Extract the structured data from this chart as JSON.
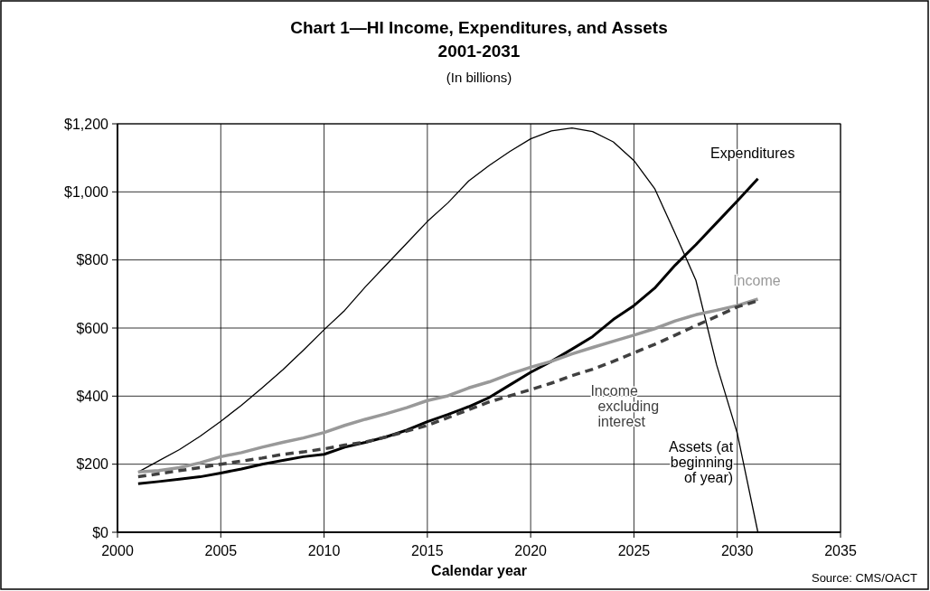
{
  "chart_data": {
    "type": "line",
    "title": "Chart 1—HI Income, Expenditures, and Assets\n2001-2031",
    "subtitle": "(In billions)",
    "xlabel": "Calendar year",
    "annotations": [
      "Source: CMS/OACT"
    ],
    "x": [
      2001,
      2002,
      2003,
      2004,
      2005,
      2006,
      2007,
      2008,
      2009,
      2010,
      2011,
      2012,
      2013,
      2014,
      2015,
      2016,
      2017,
      2018,
      2019,
      2020,
      2021,
      2022,
      2023,
      2024,
      2025,
      2026,
      2027,
      2028,
      2029,
      2030,
      2031
    ],
    "series": [
      {
        "name": "Assets (at beginning of year)",
        "color": "#000000",
        "values": [
          177,
          210,
          243,
          282,
          326,
          373,
          424,
          477,
          535,
          595,
          652,
          721,
          785,
          849,
          913,
          968,
          1032,
          1078,
          1119,
          1156,
          1179,
          1188,
          1177,
          1147,
          1092,
          1010,
          877,
          740,
          492,
          291,
          0
        ]
      },
      {
        "name": "Expenditures",
        "color": "#000000",
        "values": [
          143,
          149,
          156,
          163,
          174,
          186,
          200,
          211,
          222,
          229,
          250,
          264,
          280,
          300,
          325,
          346,
          369,
          396,
          433,
          470,
          502,
          538,
          575,
          625,
          666,
          717,
          785,
          845,
          909,
          973,
          1039
        ]
      },
      {
        "name": "Income",
        "color": "#999999",
        "values": [
          177,
          181,
          190,
          204,
          222,
          234,
          250,
          264,
          277,
          293,
          314,
          332,
          348,
          366,
          387,
          401,
          424,
          442,
          465,
          485,
          502,
          524,
          543,
          561,
          579,
          598,
          621,
          639,
          652,
          666,
          685
        ]
      },
      {
        "name": "Income excluding interest",
        "color": "#404040",
        "line_style": "dashed",
        "values": [
          163,
          172,
          181,
          190,
          200,
          209,
          218,
          229,
          236,
          245,
          256,
          265,
          280,
          297,
          314,
          337,
          360,
          383,
          401,
          419,
          438,
          460,
          479,
          502,
          527,
          552,
          579,
          607,
          634,
          662,
          680
        ]
      }
    ],
    "xlim": [
      2000,
      2035
    ],
    "xticks": [
      2000,
      2005,
      2010,
      2015,
      2020,
      2025,
      2030,
      2035
    ],
    "ylim": [
      0,
      1200
    ],
    "yticks": [
      {
        "value": 0,
        "label": "$0"
      },
      {
        "value": 200,
        "label": "$200"
      },
      {
        "value": 400,
        "label": "$400"
      },
      {
        "value": 600,
        "label": "$600"
      },
      {
        "value": 800,
        "label": "$800"
      },
      {
        "value": 1000,
        "label": "$1,000"
      },
      {
        "value": 1200,
        "label": "$1,200"
      }
    ],
    "grid": true,
    "marker": "none"
  }
}
